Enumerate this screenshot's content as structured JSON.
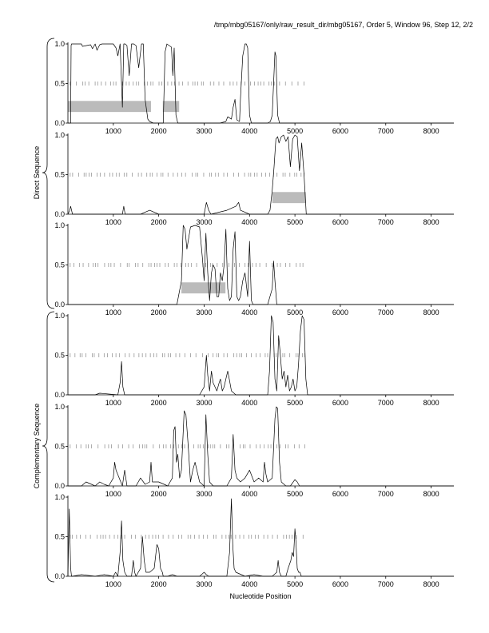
{
  "title": "/tmp/mbg05167/only/raw_result_dir/mbg05167, Order 5, Window 96, Step 12, 2/2",
  "xlabel": "Nucleotide Position",
  "group_labels": {
    "direct": "Direct Sequence",
    "complementary": "Complementary Sequence"
  },
  "colors": {
    "line": "#000000",
    "bar": "#bbbbbb",
    "axis": "#000000",
    "tick": "#888888"
  },
  "chart_data": {
    "type": "line",
    "xlim": [
      0,
      8500
    ],
    "ylim": [
      0,
      1
    ],
    "x_ticks": [
      1000,
      2000,
      3000,
      4000,
      5000,
      6000,
      7000,
      8000
    ],
    "y_ticks": [
      0.0,
      0.5,
      1.0
    ],
    "y_tick_labels": [
      "0.0",
      "0.5",
      "1.0"
    ],
    "grid": false,
    "legend": "none",
    "panels": [
      {
        "name": "frame-1",
        "group": "direct",
        "series": [
          {
            "x": [
              0,
              60,
              70,
              80,
              300,
              320,
              500,
              540,
              600,
              640,
              700,
              750,
              1000,
              1060,
              1100,
              1150,
              1200,
              1230,
              1260,
              1300,
              1350,
              1400,
              1450,
              1500,
              1560,
              1620,
              1660,
              1700,
              1760,
              1800,
              1880,
              2000,
              2100,
              2140,
              2180,
              2230,
              2280,
              2310,
              2340,
              2380,
              2420,
              2460,
              2600,
              2800,
              3000,
              3200,
              3350,
              3480,
              3520,
              3600,
              3640,
              3680,
              3720,
              3780,
              3800,
              3850,
              3900,
              3930,
              3960,
              4000,
              4040,
              4100,
              4200,
              4300,
              4400,
              4460,
              4500,
              4530,
              4560,
              4580,
              4620,
              4660,
              4700,
              4800,
              5000,
              5200,
              5400,
              6000,
              7000,
              8000,
              8500
            ],
            "y": [
              0,
              0,
              0.98,
              1,
              1,
              0.97,
              0.99,
              0.94,
              1,
              0.92,
              0.99,
              1,
              1,
              0.95,
              0.85,
              1,
              0.2,
              1,
              1,
              0.98,
              0.6,
              1,
              1,
              0.98,
              0.7,
              1,
              1,
              0.3,
              0.05,
              0.02,
              0,
              0,
              0,
              0.9,
              1,
              0.98,
              0.96,
              0.6,
              0.95,
              0.1,
              0,
              0,
              0,
              0,
              0,
              0,
              0,
              0.02,
              0.08,
              0.05,
              0.2,
              0.3,
              0.04,
              0.02,
              0.3,
              0.85,
              1,
              1,
              0.95,
              0.1,
              0,
              0,
              0,
              0,
              0,
              0.02,
              0.1,
              0.5,
              0.9,
              0.85,
              0.1,
              0,
              0,
              0,
              0,
              0,
              0,
              0,
              0,
              0,
              0
            ]
          }
        ],
        "orfs": [
          [
            0,
            1830
          ],
          [
            2090,
            2450
          ]
        ]
      },
      {
        "name": "frame-2",
        "group": "direct",
        "series": [
          {
            "x": [
              0,
              40,
              60,
              100,
              500,
              1200,
              1230,
              1260,
              1600,
              1800,
              2000,
              2500,
              3000,
              3050,
              3100,
              3150,
              3500,
              3700,
              3760,
              3800,
              4000,
              4300,
              4400,
              4450,
              4500,
              4540,
              4580,
              4620,
              4650,
              4700,
              4750,
              4800,
              4850,
              4900,
              4950,
              5000,
              5050,
              5100,
              5150,
              5200,
              5250,
              5300,
              5500,
              6000,
              7000,
              8000,
              8500
            ],
            "y": [
              0,
              0.05,
              0.1,
              0,
              0,
              0,
              0.1,
              0,
              0,
              0.05,
              0,
              0,
              0,
              0.15,
              0.05,
              0,
              0.05,
              0.1,
              0.15,
              0.05,
              0,
              0,
              0,
              0.05,
              0.3,
              0.6,
              0.95,
              0.98,
              0.9,
              0.98,
              1,
              0.92,
              0.98,
              0.6,
              0.95,
              1,
              0.98,
              0.55,
              0.9,
              0.5,
              0,
              0,
              0,
              0,
              0,
              0,
              0
            ]
          }
        ],
        "orfs": [
          [
            4500,
            5240
          ]
        ]
      },
      {
        "name": "frame-3",
        "group": "direct",
        "series": [
          {
            "x": [
              0,
              1000,
              2000,
              2400,
              2500,
              2540,
              2580,
              2620,
              2700,
              2800,
              2900,
              2960,
              3000,
              3040,
              3080,
              3120,
              3160,
              3200,
              3240,
              3280,
              3320,
              3360,
              3400,
              3440,
              3480,
              3520,
              3560,
              3600,
              3640,
              3680,
              3720,
              3760,
              3800,
              3850,
              3900,
              3960,
              4000,
              4040,
              4080,
              4200,
              4400,
              4500,
              4530,
              4560,
              4600,
              4700,
              5000,
              5500,
              6000,
              7000,
              8000,
              8500
            ],
            "y": [
              0,
              0,
              0,
              0,
              0.3,
              1,
              0.95,
              0.7,
              0.98,
              1,
              0.98,
              0.6,
              0.3,
              0.9,
              0.4,
              0.05,
              0.4,
              0.5,
              0.45,
              0.1,
              0.1,
              0.4,
              0.3,
              0.5,
              0.95,
              0.2,
              0.05,
              0.1,
              0.7,
              0.92,
              0.1,
              0.05,
              0.1,
              0.3,
              0.4,
              0.1,
              0.8,
              0.05,
              0,
              0,
              0,
              0.2,
              0.55,
              0.3,
              0,
              0,
              0,
              0,
              0,
              0,
              0,
              0
            ]
          }
        ],
        "orfs": [
          [
            2500,
            3470
          ]
        ]
      },
      {
        "name": "frame-4",
        "group": "complementary",
        "series": [
          {
            "x": [
              0,
              600,
              700,
              1100,
              1150,
              1180,
              1210,
              1250,
              1800,
              2500,
              2900,
              3000,
              3050,
              3080,
              3120,
              3160,
              3200,
              3280,
              3330,
              3360,
              3400,
              3440,
              3480,
              3520,
              3560,
              3600,
              3700,
              3800,
              3900,
              4100,
              4200,
              4300,
              4400,
              4440,
              4480,
              4520,
              4560,
              4600,
              4640,
              4680,
              4720,
              4760,
              4800,
              4840,
              4880,
              4920,
              4960,
              5000,
              5040,
              5080,
              5120,
              5160,
              5200,
              5240,
              5280,
              5400,
              6000,
              7000,
              8000,
              8500
            ],
            "y": [
              0,
              0,
              0.02,
              0,
              0.15,
              0.42,
              0.1,
              0,
              0,
              0,
              0,
              0.1,
              0.5,
              0.25,
              0.05,
              0.3,
              0.15,
              0.05,
              0.15,
              0.2,
              0.05,
              0.1,
              0.2,
              0.3,
              0.18,
              0.05,
              0,
              0,
              0,
              0,
              0,
              0,
              0,
              0.3,
              1,
              0.92,
              0.2,
              0.05,
              0.75,
              0.5,
              0.2,
              0.3,
              0.1,
              0.25,
              0.05,
              0.1,
              0.2,
              0.05,
              0.1,
              0.4,
              0.8,
              1,
              0.95,
              0.2,
              0,
              0,
              0,
              0,
              0,
              0
            ]
          }
        ],
        "orfs": []
      },
      {
        "name": "frame-5",
        "group": "complementary",
        "series": [
          {
            "x": [
              0,
              300,
              400,
              600,
              700,
              800,
              900,
              1000,
              1030,
              1060,
              1200,
              1250,
              1300,
              1500,
              1600,
              1700,
              1800,
              1830,
              1860,
              2000,
              2200,
              2300,
              2330,
              2360,
              2390,
              2420,
              2460,
              2500,
              2560,
              2600,
              2650,
              2700,
              2750,
              2800,
              2900,
              3000,
              3040,
              3080,
              3120,
              3200,
              3400,
              3500,
              3600,
              3640,
              3680,
              3720,
              3800,
              3900,
              4000,
              4100,
              4200,
              4300,
              4330,
              4360,
              4400,
              4500,
              4560,
              4590,
              4620,
              4660,
              4700,
              4800,
              4900,
              5000,
              5050,
              5100,
              5200,
              5300,
              5500,
              6000,
              7000,
              8000,
              8500
            ],
            "y": [
              0,
              0,
              0.05,
              0,
              0.05,
              0.02,
              0,
              0.1,
              0.3,
              0.2,
              0,
              0.2,
              0,
              0,
              0.1,
              0.02,
              0.05,
              0.3,
              0.05,
              0.05,
              0,
              0.1,
              0.7,
              0.75,
              0.3,
              0.4,
              0.1,
              0.2,
              0.95,
              0.9,
              0.5,
              0.05,
              0.2,
              0.3,
              0.05,
              0,
              0.9,
              0.4,
              0.05,
              0,
              0,
              0,
              0.1,
              0.65,
              0.2,
              0.1,
              0.05,
              0.1,
              0.2,
              0.05,
              0.1,
              0.05,
              0.3,
              0.15,
              0.05,
              0.1,
              0.85,
              1,
              0.98,
              0.3,
              0.05,
              0,
              0,
              0.08,
              0.05,
              0,
              0,
              0,
              0,
              0,
              0,
              0,
              0
            ]
          }
        ],
        "orfs": []
      },
      {
        "name": "frame-6",
        "group": "complementary",
        "series": [
          {
            "x": [
              0,
              30,
              60,
              80,
              100,
              300,
              600,
              800,
              1000,
              1050,
              1100,
              1150,
              1180,
              1210,
              1250,
              1300,
              1400,
              1440,
              1470,
              1500,
              1600,
              1640,
              1680,
              1720,
              1800,
              1900,
              1960,
              2000,
              2040,
              2080,
              2100,
              2200,
              2300,
              2400,
              2500,
              2700,
              2900,
              3000,
              3050,
              3100,
              3300,
              3500,
              3560,
              3600,
              3630,
              3660,
              3700,
              3900,
              4100,
              4300,
              4500,
              4600,
              4630,
              4660,
              4700,
              4800,
              4850,
              4880,
              4910,
              4940,
              4970,
              5000,
              5020,
              5050,
              5080,
              5110,
              5140,
              5200,
              5400,
              6000,
              7000,
              8000,
              8500
            ],
            "y": [
              0,
              0.85,
              0.1,
              0,
              0,
              0.02,
              0,
              0.02,
              0,
              0.05,
              0,
              0.3,
              0.7,
              0.2,
              0.05,
              0,
              0,
              0.2,
              0.05,
              0,
              0.1,
              0.5,
              0.2,
              0.05,
              0.05,
              0.1,
              0.4,
              0.35,
              0.1,
              0.05,
              0,
              0,
              0.02,
              0,
              0,
              0,
              0,
              0.05,
              0.02,
              0,
              0,
              0,
              0.3,
              0.98,
              0.4,
              0.1,
              0.05,
              0,
              0.02,
              0,
              0,
              0.05,
              0.2,
              0.05,
              0,
              0,
              0.1,
              0.15,
              0.2,
              0.3,
              0.25,
              0.6,
              0.45,
              0.1,
              0.05,
              0.05,
              0,
              0,
              0,
              0,
              0,
              0,
              0
            ]
          }
        ],
        "orfs": []
      }
    ]
  }
}
